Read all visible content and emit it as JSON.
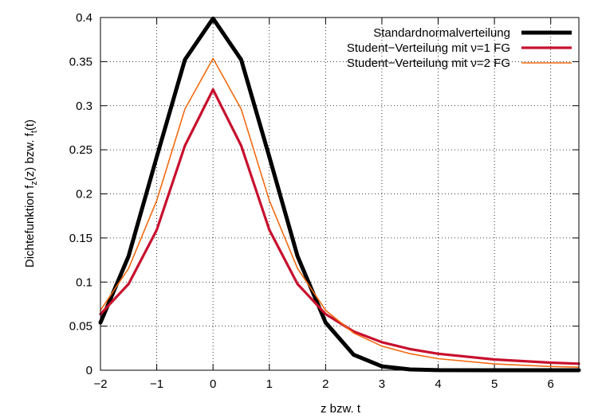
{
  "chart_data": {
    "type": "line",
    "xlabel": "z bzw. t",
    "ylabel_parts": [
      "Dichtefunktion f",
      "z",
      "(z) bzw. f",
      "t",
      "(t)"
    ],
    "xlim": [
      -2,
      6.5
    ],
    "ylim": [
      0,
      0.4
    ],
    "x_ticks": [
      -2,
      -1,
      0,
      1,
      2,
      3,
      4,
      5,
      6
    ],
    "x_tick_labels": [
      "−2",
      "−1",
      "0",
      "1",
      "2",
      "3",
      "4",
      "5",
      "6"
    ],
    "y_ticks": [
      0,
      0.05,
      0.1,
      0.15,
      0.2,
      0.25,
      0.3,
      0.35,
      0.4
    ],
    "y_tick_labels": [
      "0",
      "0.05",
      "0.1",
      "0.15",
      "0.2",
      "0.25",
      "0.3",
      "0.35",
      "0.4"
    ],
    "grid": true,
    "legend_position": "top-right",
    "series": [
      {
        "name": "Standardnormalverteilung",
        "color": "#000000",
        "x": [
          -2,
          -1.5,
          -1,
          -0.5,
          0,
          0.5,
          1,
          1.5,
          2,
          2.5,
          3,
          3.5,
          4,
          5,
          6,
          6.5
        ],
        "y": [
          0.054,
          0.1295,
          0.242,
          0.3521,
          0.3989,
          0.3521,
          0.242,
          0.1295,
          0.054,
          0.0175,
          0.0044,
          0.0009,
          0.0001,
          0,
          0,
          0
        ]
      },
      {
        "name": "Student−Verteilung mit ν=1 FG",
        "color": "#c8102e",
        "x": [
          -2,
          -1.5,
          -1,
          -0.5,
          0,
          0.5,
          1,
          1.5,
          2,
          2.5,
          3,
          3.5,
          4,
          5,
          6,
          6.5
        ],
        "y": [
          0.0637,
          0.0979,
          0.1592,
          0.2546,
          0.3183,
          0.2546,
          0.1592,
          0.0979,
          0.0637,
          0.0439,
          0.0318,
          0.024,
          0.0187,
          0.0122,
          0.0086,
          0.0074
        ]
      },
      {
        "name": "Student−Verteilung mit ν=2 FG",
        "color": "#f26a10",
        "x": [
          -2,
          -1.5,
          -1,
          -0.5,
          0,
          0.5,
          1,
          1.5,
          2,
          2.5,
          3,
          3.5,
          4,
          5,
          6,
          6.5
        ],
        "y": [
          0.068,
          0.1155,
          0.1925,
          0.2962,
          0.3536,
          0.2962,
          0.1925,
          0.1155,
          0.068,
          0.0422,
          0.0274,
          0.0188,
          0.0131,
          0.0071,
          0.0042,
          0.0034
        ]
      }
    ]
  }
}
